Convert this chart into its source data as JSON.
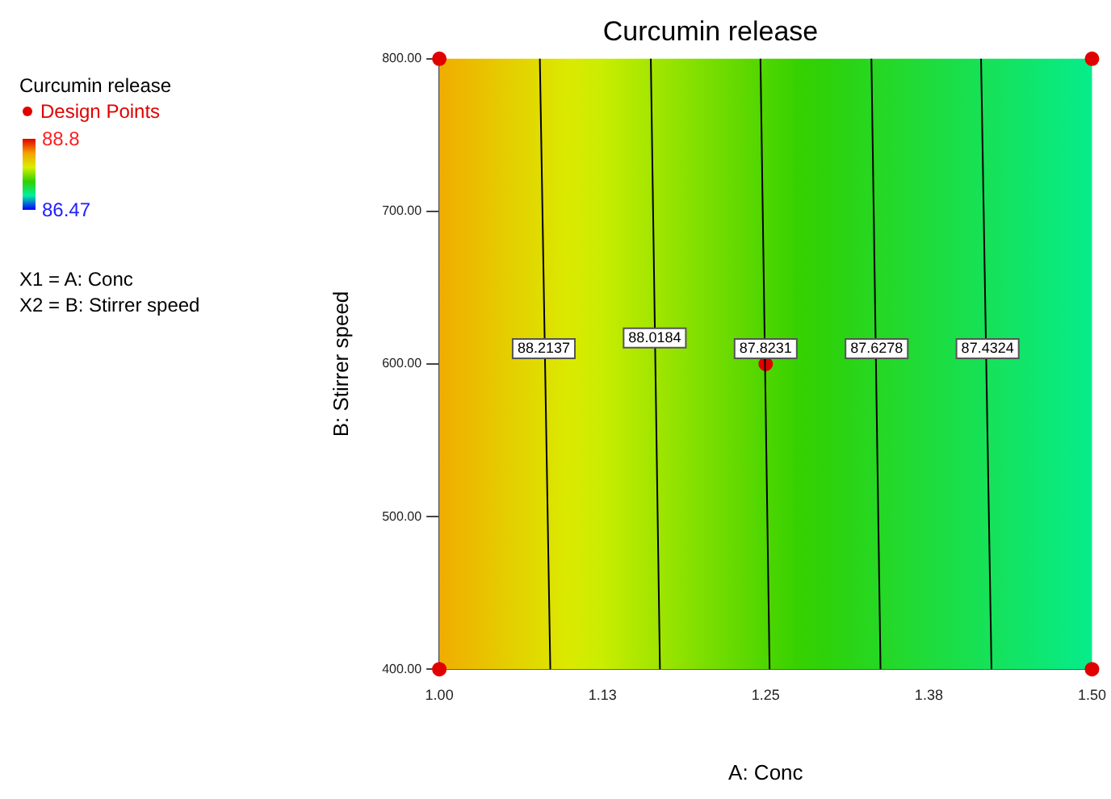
{
  "chart_data": {
    "type": "line",
    "title": "Curcumin release",
    "xlabel": "A: Conc",
    "ylabel": "B: Stirrer speed",
    "clabel": "Curcumin release",
    "clim": [
      86.47,
      88.8
    ],
    "cticks": [
      88.8,
      86.47
    ],
    "xlim": [
      1,
      1.5
    ],
    "xticks": [
      {
        "value": 1,
        "label": "1.00"
      },
      {
        "value": 1.125,
        "label": "1.13"
      },
      {
        "value": 1.25,
        "label": "1.25"
      },
      {
        "value": 1.375,
        "label": "1.38"
      },
      {
        "value": 1.5,
        "label": "1.50"
      }
    ],
    "ylim": [
      400,
      800
    ],
    "yticks": [
      {
        "value": 400,
        "label": "400.00"
      },
      {
        "value": 500,
        "label": "500.00"
      },
      {
        "value": 600,
        "label": "600.00"
      },
      {
        "value": 700,
        "label": "700.00"
      },
      {
        "value": 800,
        "label": "800.00"
      }
    ],
    "grid": false,
    "legend": "left",
    "line_style": "solid",
    "series": [
      {
        "color": "#000000",
        "marker": "none",
        "x": [
          1.085,
          1.077
        ],
        "values": [
          400,
          800
        ]
      },
      {
        "color": "#000000",
        "marker": "none",
        "x": [
          1.169,
          1.162
        ],
        "values": [
          400,
          800
        ]
      },
      {
        "color": "#000000",
        "marker": "none",
        "x": [
          1.253,
          1.246
        ],
        "values": [
          400,
          800
        ]
      },
      {
        "color": "#000000",
        "marker": "none",
        "x": [
          1.338,
          1.331
        ],
        "values": [
          400,
          800
        ]
      },
      {
        "color": "#000000",
        "marker": "none",
        "x": [
          1.423,
          1.415
        ],
        "values": [
          400,
          800
        ]
      },
      {
        "type": "scatter",
        "name": "Design Points",
        "color": "#e00000",
        "marker": "circle",
        "x": [
          1,
          1,
          1.25,
          1.5,
          1.5
        ],
        "values": [
          400,
          800,
          600,
          400,
          800
        ]
      }
    ],
    "annotations": [
      {
        "text": "88.2137",
        "x": 1.08,
        "y": 610
      },
      {
        "text": "88.0184",
        "x": 1.165,
        "y": 617
      },
      {
        "text": "87.8231",
        "x": 1.25,
        "y": 610
      },
      {
        "text": "87.6278",
        "x": 1.335,
        "y": 610
      },
      {
        "text": "87.4324",
        "x": 1.42,
        "y": 610
      },
      "X1 = A: Conc",
      "X2 = B: Stirrer speed"
    ]
  }
}
